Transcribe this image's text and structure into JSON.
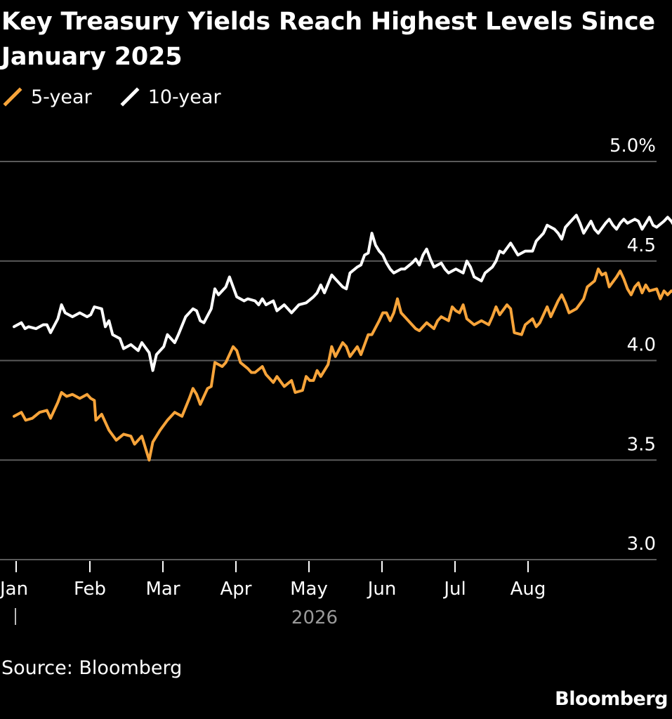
{
  "title": "Key Treasury Yields Reach Highest Levels Since January 2025",
  "source": "Source: Bloomberg",
  "brand": "Bloomberg",
  "colors": {
    "background": "#000000",
    "five_year": "#f7a43a",
    "ten_year": "#ffffff",
    "grid": "#5a5a5a",
    "year_label": "#9a9a9a"
  },
  "chart_data": {
    "type": "line",
    "title": "Key Treasury Yields Reach Highest Levels Since January 2025",
    "ylabel": "",
    "xlabel": "",
    "year_label": "2026",
    "ylim": [
      3.0,
      5.0
    ],
    "y_ticks": [
      {
        "value": 5.0,
        "label": "5.0%"
      },
      {
        "value": 4.5,
        "label": "4.5"
      },
      {
        "value": 4.0,
        "label": "4.0"
      },
      {
        "value": 3.5,
        "label": "3.5"
      },
      {
        "value": 3.0,
        "label": "3.0"
      }
    ],
    "x_ticks": [
      "Jan",
      "Feb",
      "Mar",
      "Apr",
      "May",
      "Jun",
      "Jul",
      "Aug"
    ],
    "legend_position": "top-left",
    "grid": "horizontal",
    "series": [
      {
        "name": "5-year",
        "key": "five_year",
        "points": [
          [
            0.0,
            3.72
          ],
          [
            0.1,
            3.74
          ],
          [
            0.16,
            3.7
          ],
          [
            0.25,
            3.71
          ],
          [
            0.35,
            3.74
          ],
          [
            0.45,
            3.75
          ],
          [
            0.5,
            3.71
          ],
          [
            0.6,
            3.79
          ],
          [
            0.65,
            3.84
          ],
          [
            0.72,
            3.82
          ],
          [
            0.8,
            3.83
          ],
          [
            0.9,
            3.81
          ],
          [
            1.0,
            3.83
          ],
          [
            1.05,
            3.81
          ],
          [
            1.1,
            3.8
          ],
          [
            1.12,
            3.7
          ],
          [
            1.2,
            3.73
          ],
          [
            1.3,
            3.65
          ],
          [
            1.4,
            3.6
          ],
          [
            1.5,
            3.63
          ],
          [
            1.6,
            3.62
          ],
          [
            1.65,
            3.58
          ],
          [
            1.75,
            3.62
          ],
          [
            1.85,
            3.5
          ],
          [
            1.9,
            3.59
          ],
          [
            2.0,
            3.65
          ],
          [
            2.1,
            3.7
          ],
          [
            2.2,
            3.74
          ],
          [
            2.3,
            3.72
          ],
          [
            2.4,
            3.81
          ],
          [
            2.45,
            3.86
          ],
          [
            2.5,
            3.83
          ],
          [
            2.55,
            3.78
          ],
          [
            2.65,
            3.86
          ],
          [
            2.7,
            3.87
          ],
          [
            2.75,
            3.99
          ],
          [
            2.85,
            3.97
          ],
          [
            2.9,
            3.99
          ],
          [
            3.0,
            4.07
          ],
          [
            3.05,
            4.05
          ],
          [
            3.1,
            3.99
          ],
          [
            3.2,
            3.96
          ],
          [
            3.25,
            3.94
          ],
          [
            3.3,
            3.94
          ],
          [
            3.4,
            3.97
          ],
          [
            3.45,
            3.93
          ],
          [
            3.55,
            3.89
          ],
          [
            3.6,
            3.92
          ],
          [
            3.7,
            3.87
          ],
          [
            3.8,
            3.9
          ],
          [
            3.85,
            3.84
          ],
          [
            3.95,
            3.85
          ],
          [
            4.0,
            3.92
          ],
          [
            4.05,
            3.9
          ],
          [
            4.1,
            3.9
          ],
          [
            4.15,
            3.95
          ],
          [
            4.2,
            3.92
          ],
          [
            4.3,
            3.98
          ],
          [
            4.35,
            4.07
          ],
          [
            4.4,
            4.02
          ],
          [
            4.5,
            4.09
          ],
          [
            4.55,
            4.07
          ],
          [
            4.6,
            4.02
          ],
          [
            4.7,
            4.07
          ],
          [
            4.75,
            4.03
          ],
          [
            4.8,
            4.08
          ],
          [
            4.85,
            4.13
          ],
          [
            4.9,
            4.13
          ],
          [
            5.0,
            4.2
          ],
          [
            5.05,
            4.24
          ],
          [
            5.1,
            4.24
          ],
          [
            5.15,
            4.2
          ],
          [
            5.2,
            4.24
          ],
          [
            5.25,
            4.31
          ],
          [
            5.3,
            4.24
          ],
          [
            5.35,
            4.22
          ],
          [
            5.45,
            4.18
          ],
          [
            5.5,
            4.16
          ],
          [
            5.55,
            4.15
          ],
          [
            5.65,
            4.19
          ],
          [
            5.75,
            4.16
          ],
          [
            5.8,
            4.2
          ],
          [
            5.85,
            4.22
          ],
          [
            5.95,
            4.2
          ],
          [
            6.0,
            4.27
          ],
          [
            6.05,
            4.25
          ],
          [
            6.1,
            4.24
          ],
          [
            6.15,
            4.28
          ],
          [
            6.2,
            4.21
          ],
          [
            6.3,
            4.18
          ],
          [
            6.4,
            4.2
          ],
          [
            6.5,
            4.18
          ],
          [
            6.55,
            4.22
          ],
          [
            6.6,
            4.27
          ],
          [
            6.65,
            4.23
          ],
          [
            6.75,
            4.28
          ],
          [
            6.8,
            4.26
          ],
          [
            6.85,
            4.14
          ],
          [
            6.95,
            4.13
          ],
          [
            7.0,
            4.18
          ],
          [
            7.1,
            4.21
          ],
          [
            7.15,
            4.17
          ],
          [
            7.2,
            4.19
          ],
          [
            7.3,
            4.27
          ],
          [
            7.35,
            4.22
          ],
          [
            7.45,
            4.3
          ],
          [
            7.5,
            4.33
          ],
          [
            7.55,
            4.29
          ],
          [
            7.6,
            4.24
          ],
          [
            7.7,
            4.26
          ],
          [
            7.8,
            4.31
          ],
          [
            7.85,
            4.37
          ],
          [
            7.95,
            4.4
          ],
          [
            8.0,
            4.46
          ],
          [
            8.05,
            4.43
          ],
          [
            8.1,
            4.44
          ],
          [
            8.15,
            4.37
          ],
          [
            8.25,
            4.42
          ],
          [
            8.3,
            4.45
          ],
          [
            8.35,
            4.41
          ],
          [
            8.4,
            4.36
          ],
          [
            8.45,
            4.33
          ],
          [
            8.5,
            4.37
          ],
          [
            8.55,
            4.39
          ],
          [
            8.6,
            4.34
          ],
          [
            8.65,
            4.38
          ],
          [
            8.7,
            4.35
          ],
          [
            8.8,
            4.36
          ],
          [
            8.85,
            4.31
          ],
          [
            8.9,
            4.35
          ],
          [
            8.95,
            4.33
          ],
          [
            9.0,
            4.35
          ],
          [
            9.05,
            4.34
          ],
          [
            9.15,
            4.38
          ],
          [
            9.2,
            4.42
          ],
          [
            9.25,
            4.39
          ],
          [
            9.3,
            4.33
          ],
          [
            9.35,
            4.36
          ],
          [
            9.45,
            4.41
          ],
          [
            9.5,
            4.48
          ],
          [
            9.55,
            4.49
          ]
        ]
      },
      {
        "name": "10-year",
        "key": "ten_year",
        "points": [
          [
            0.0,
            4.17
          ],
          [
            0.1,
            4.19
          ],
          [
            0.15,
            4.16
          ],
          [
            0.2,
            4.17
          ],
          [
            0.3,
            4.16
          ],
          [
            0.4,
            4.18
          ],
          [
            0.45,
            4.18
          ],
          [
            0.5,
            4.14
          ],
          [
            0.6,
            4.21
          ],
          [
            0.65,
            4.28
          ],
          [
            0.7,
            4.24
          ],
          [
            0.8,
            4.22
          ],
          [
            0.9,
            4.24
          ],
          [
            1.0,
            4.22
          ],
          [
            1.05,
            4.23
          ],
          [
            1.1,
            4.27
          ],
          [
            1.2,
            4.26
          ],
          [
            1.25,
            4.17
          ],
          [
            1.3,
            4.2
          ],
          [
            1.35,
            4.13
          ],
          [
            1.45,
            4.11
          ],
          [
            1.5,
            4.06
          ],
          [
            1.6,
            4.08
          ],
          [
            1.7,
            4.05
          ],
          [
            1.75,
            4.09
          ],
          [
            1.85,
            4.04
          ],
          [
            1.9,
            3.95
          ],
          [
            1.95,
            4.03
          ],
          [
            2.05,
            4.07
          ],
          [
            2.1,
            4.13
          ],
          [
            2.2,
            4.09
          ],
          [
            2.25,
            4.13
          ],
          [
            2.35,
            4.22
          ],
          [
            2.45,
            4.26
          ],
          [
            2.5,
            4.25
          ],
          [
            2.55,
            4.2
          ],
          [
            2.6,
            4.19
          ],
          [
            2.7,
            4.26
          ],
          [
            2.75,
            4.36
          ],
          [
            2.8,
            4.33
          ],
          [
            2.9,
            4.37
          ],
          [
            2.95,
            4.42
          ],
          [
            3.0,
            4.37
          ],
          [
            3.05,
            4.32
          ],
          [
            3.15,
            4.3
          ],
          [
            3.2,
            4.31
          ],
          [
            3.3,
            4.3
          ],
          [
            3.35,
            4.28
          ],
          [
            3.4,
            4.31
          ],
          [
            3.45,
            4.28
          ],
          [
            3.55,
            4.3
          ],
          [
            3.6,
            4.25
          ],
          [
            3.7,
            4.28
          ],
          [
            3.8,
            4.24
          ],
          [
            3.9,
            4.28
          ],
          [
            4.0,
            4.29
          ],
          [
            4.1,
            4.32
          ],
          [
            4.15,
            4.34
          ],
          [
            4.2,
            4.38
          ],
          [
            4.25,
            4.34
          ],
          [
            4.35,
            4.43
          ],
          [
            4.4,
            4.41
          ],
          [
            4.5,
            4.37
          ],
          [
            4.55,
            4.36
          ],
          [
            4.6,
            4.44
          ],
          [
            4.7,
            4.47
          ],
          [
            4.75,
            4.48
          ],
          [
            4.8,
            4.53
          ],
          [
            4.85,
            4.54
          ],
          [
            4.9,
            4.64
          ],
          [
            4.95,
            4.58
          ],
          [
            5.0,
            4.55
          ],
          [
            5.05,
            4.53
          ],
          [
            5.1,
            4.49
          ],
          [
            5.15,
            4.46
          ],
          [
            5.2,
            4.44
          ],
          [
            5.3,
            4.46
          ],
          [
            5.35,
            4.46
          ],
          [
            5.45,
            4.49
          ],
          [
            5.5,
            4.51
          ],
          [
            5.55,
            4.48
          ],
          [
            5.6,
            4.53
          ],
          [
            5.65,
            4.56
          ],
          [
            5.7,
            4.51
          ],
          [
            5.75,
            4.47
          ],
          [
            5.85,
            4.49
          ],
          [
            5.9,
            4.46
          ],
          [
            5.95,
            4.44
          ],
          [
            6.05,
            4.46
          ],
          [
            6.15,
            4.44
          ],
          [
            6.2,
            4.5
          ],
          [
            6.25,
            4.47
          ],
          [
            6.3,
            4.42
          ],
          [
            6.4,
            4.4
          ],
          [
            6.45,
            4.44
          ],
          [
            6.55,
            4.47
          ],
          [
            6.6,
            4.5
          ],
          [
            6.65,
            4.55
          ],
          [
            6.7,
            4.54
          ],
          [
            6.8,
            4.59
          ],
          [
            6.85,
            4.56
          ],
          [
            6.9,
            4.53
          ],
          [
            7.0,
            4.55
          ],
          [
            7.1,
            4.55
          ],
          [
            7.15,
            4.6
          ],
          [
            7.25,
            4.64
          ],
          [
            7.3,
            4.68
          ],
          [
            7.4,
            4.66
          ],
          [
            7.45,
            4.64
          ],
          [
            7.5,
            4.61
          ],
          [
            7.55,
            4.67
          ],
          [
            7.6,
            4.69
          ],
          [
            7.7,
            4.73
          ],
          [
            7.75,
            4.69
          ],
          [
            7.8,
            4.64
          ],
          [
            7.85,
            4.67
          ],
          [
            7.9,
            4.7
          ],
          [
            7.95,
            4.66
          ],
          [
            8.0,
            4.64
          ],
          [
            8.1,
            4.69
          ],
          [
            8.15,
            4.71
          ],
          [
            8.2,
            4.68
          ],
          [
            8.25,
            4.66
          ],
          [
            8.3,
            4.69
          ],
          [
            8.35,
            4.71
          ],
          [
            8.4,
            4.69
          ],
          [
            8.5,
            4.71
          ],
          [
            8.55,
            4.7
          ],
          [
            8.6,
            4.66
          ],
          [
            8.65,
            4.69
          ],
          [
            8.7,
            4.72
          ],
          [
            8.75,
            4.68
          ],
          [
            8.8,
            4.67
          ],
          [
            8.9,
            4.7
          ],
          [
            8.95,
            4.72
          ],
          [
            9.0,
            4.7
          ],
          [
            9.05,
            4.67
          ],
          [
            9.1,
            4.65
          ],
          [
            9.15,
            4.68
          ],
          [
            9.25,
            4.71
          ],
          [
            9.3,
            4.66
          ],
          [
            9.35,
            4.67
          ],
          [
            9.45,
            4.7
          ],
          [
            9.5,
            4.72
          ],
          [
            9.55,
            4.75
          ]
        ]
      }
    ]
  }
}
